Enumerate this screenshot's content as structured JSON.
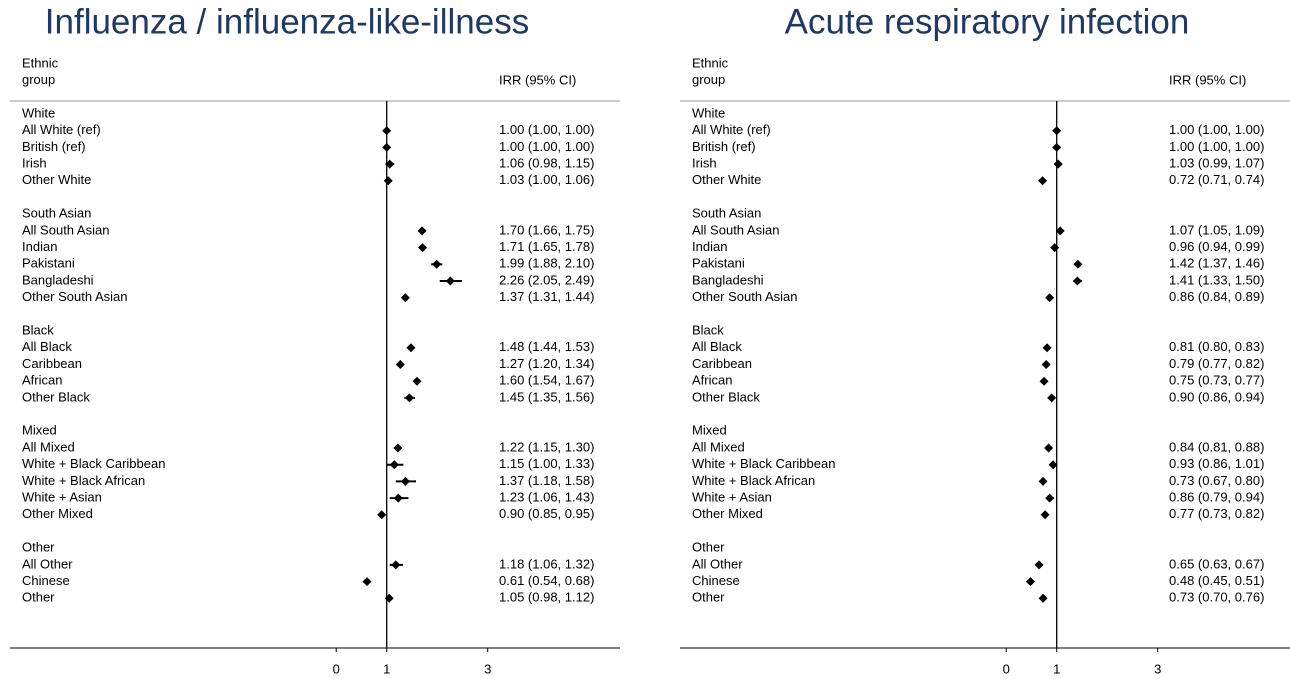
{
  "chart_data": [
    {
      "type": "forest",
      "title": "Influenza / influenza-like-illness",
      "row_header": [
        "Ethnic",
        "group"
      ],
      "value_header": "IRR (95% CI)",
      "xlim": [
        -6.46,
        5.62
      ],
      "xticks": [
        0,
        1,
        3
      ],
      "reference_line": 1,
      "color": "#000000",
      "groups": [
        {
          "name": "White",
          "categories": [
            "All White (ref)",
            "British (ref)",
            "Irish",
            "Other White"
          ],
          "values": [
            1.0,
            1.0,
            1.06,
            1.03
          ],
          "lower": [
            1.0,
            1.0,
            0.98,
            1.0
          ],
          "upper": [
            1.0,
            1.0,
            1.15,
            1.06
          ],
          "value_labels": [
            "1.00 (1.00, 1.00)",
            "1.00 (1.00, 1.00)",
            "1.06 (0.98, 1.15)",
            "1.03 (1.00, 1.06)"
          ]
        },
        {
          "name": "South Asian",
          "categories": [
            "All South Asian",
            "Indian",
            "Pakistani",
            "Bangladeshi",
            "Other South Asian"
          ],
          "values": [
            1.7,
            1.71,
            1.99,
            2.26,
            1.37
          ],
          "lower": [
            1.66,
            1.65,
            1.88,
            2.05,
            1.31
          ],
          "upper": [
            1.75,
            1.78,
            2.1,
            2.49,
            1.44
          ],
          "value_labels": [
            "1.70 (1.66, 1.75)",
            "1.71 (1.65, 1.78)",
            "1.99 (1.88, 2.10)",
            "2.26 (2.05, 2.49)",
            "1.37 (1.31, 1.44)"
          ]
        },
        {
          "name": "Black",
          "categories": [
            "All Black",
            "Caribbean",
            "African",
            "Other Black"
          ],
          "values": [
            1.48,
            1.27,
            1.6,
            1.45
          ],
          "lower": [
            1.44,
            1.2,
            1.54,
            1.35
          ],
          "upper": [
            1.53,
            1.34,
            1.67,
            1.56
          ],
          "value_labels": [
            "1.48 (1.44, 1.53)",
            "1.27 (1.20, 1.34)",
            "1.60 (1.54, 1.67)",
            "1.45 (1.35, 1.56)"
          ]
        },
        {
          "name": "Mixed",
          "categories": [
            "All Mixed",
            "White + Black Caribbean",
            "White + Black African",
            "White + Asian",
            "Other Mixed"
          ],
          "values": [
            1.22,
            1.15,
            1.37,
            1.23,
            0.9
          ],
          "lower": [
            1.15,
            1.0,
            1.18,
            1.06,
            0.85
          ],
          "upper": [
            1.3,
            1.33,
            1.58,
            1.43,
            0.95
          ],
          "value_labels": [
            "1.22 (1.15, 1.30)",
            "1.15 (1.00, 1.33)",
            "1.37 (1.18, 1.58)",
            "1.23 (1.06, 1.43)",
            "0.90 (0.85, 0.95)"
          ]
        },
        {
          "name": "Other",
          "categories": [
            "All Other",
            "Chinese",
            "Other"
          ],
          "values": [
            1.18,
            0.61,
            1.05
          ],
          "lower": [
            1.06,
            0.54,
            0.98
          ],
          "upper": [
            1.32,
            0.68,
            1.12
          ],
          "value_labels": [
            "1.18 (1.06, 1.32)",
            "0.61 (0.54, 0.68)",
            "1.05 (0.98, 1.12)"
          ]
        }
      ]
    },
    {
      "type": "forest",
      "title": "Acute respiratory infection",
      "row_header": [
        "Ethnic",
        "group"
      ],
      "value_header": "IRR (95% CI)",
      "xlim": [
        -6.46,
        5.62
      ],
      "xticks": [
        0,
        1,
        3
      ],
      "reference_line": 1,
      "color": "#000000",
      "groups": [
        {
          "name": "White",
          "categories": [
            "All White (ref)",
            "British (ref)",
            "Irish",
            "Other White"
          ],
          "values": [
            1.0,
            1.0,
            1.03,
            0.72
          ],
          "lower": [
            1.0,
            1.0,
            0.99,
            0.71
          ],
          "upper": [
            1.0,
            1.0,
            1.07,
            0.74
          ],
          "value_labels": [
            "1.00 (1.00, 1.00)",
            "1.00 (1.00, 1.00)",
            "1.03 (0.99, 1.07)",
            "0.72 (0.71, 0.74)"
          ]
        },
        {
          "name": "South Asian",
          "categories": [
            "All South Asian",
            "Indian",
            "Pakistani",
            "Bangladeshi",
            "Other South Asian"
          ],
          "values": [
            1.07,
            0.96,
            1.42,
            1.41,
            0.86
          ],
          "lower": [
            1.05,
            0.94,
            1.37,
            1.33,
            0.84
          ],
          "upper": [
            1.09,
            0.99,
            1.46,
            1.5,
            0.89
          ],
          "value_labels": [
            "1.07 (1.05, 1.09)",
            "0.96 (0.94, 0.99)",
            "1.42 (1.37, 1.46)",
            "1.41 (1.33, 1.50)",
            "0.86 (0.84, 0.89)"
          ]
        },
        {
          "name": "Black",
          "categories": [
            "All Black",
            "Caribbean",
            "African",
            "Other Black"
          ],
          "values": [
            0.81,
            0.79,
            0.75,
            0.9
          ],
          "lower": [
            0.8,
            0.77,
            0.73,
            0.86
          ],
          "upper": [
            0.83,
            0.82,
            0.77,
            0.94
          ],
          "value_labels": [
            "0.81 (0.80, 0.83)",
            "0.79 (0.77, 0.82)",
            "0.75 (0.73, 0.77)",
            "0.90 (0.86, 0.94)"
          ]
        },
        {
          "name": "Mixed",
          "categories": [
            "All Mixed",
            "White + Black Caribbean",
            "White + Black African",
            "White + Asian",
            "Other Mixed"
          ],
          "values": [
            0.84,
            0.93,
            0.73,
            0.86,
            0.77
          ],
          "lower": [
            0.81,
            0.86,
            0.67,
            0.79,
            0.73
          ],
          "upper": [
            0.88,
            1.01,
            0.8,
            0.94,
            0.82
          ],
          "value_labels": [
            "0.84 (0.81, 0.88)",
            "0.93 (0.86, 1.01)",
            "0.73 (0.67, 0.80)",
            "0.86 (0.79, 0.94)",
            "0.77 (0.73, 0.82)"
          ]
        },
        {
          "name": "Other",
          "categories": [
            "All Other",
            "Chinese",
            "Other"
          ],
          "values": [
            0.65,
            0.48,
            0.73
          ],
          "lower": [
            0.63,
            0.45,
            0.7
          ],
          "upper": [
            0.67,
            0.51,
            0.76
          ],
          "value_labels": [
            "0.65 (0.63, 0.67)",
            "0.48 (0.45, 0.51)",
            "0.73 (0.70, 0.76)"
          ]
        }
      ]
    }
  ]
}
